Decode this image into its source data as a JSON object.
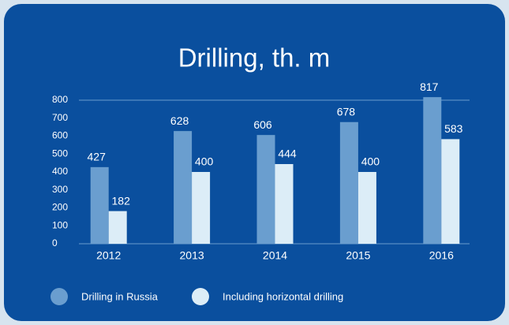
{
  "chart_data": {
    "type": "bar",
    "title": "Drilling, th. m",
    "categories": [
      "2012",
      "2013",
      "2014",
      "2015",
      "2016"
    ],
    "series": [
      {
        "name": "Drilling in Russia",
        "color": "#6a9ecf",
        "values": [
          427,
          628,
          606,
          678,
          817
        ]
      },
      {
        "name": "Including horizontal drilling",
        "color": "#dcedf7",
        "values": [
          182,
          400,
          444,
          400,
          583
        ]
      }
    ],
    "ylim": [
      0,
      800
    ],
    "yticks": [
      0,
      100,
      200,
      300,
      400,
      500,
      600,
      700,
      800
    ]
  }
}
